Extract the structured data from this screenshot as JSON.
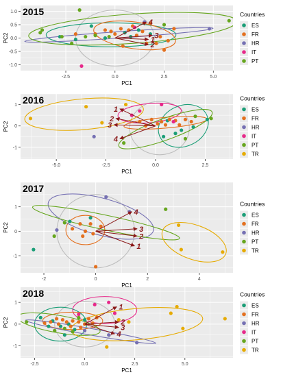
{
  "colors": {
    "ES": "#1b9e77",
    "FR": "#e3701f",
    "HR": "#7570b3",
    "IT": "#e7298a",
    "PT": "#66a61e",
    "TR": "#e6ab02",
    "arrow": "#8b1a1a",
    "grey": "#bdbdbd",
    "panel": "#ebebeb"
  },
  "chart_data": [
    {
      "type": "scatter",
      "title": "2015",
      "xlabel": "PC1",
      "ylabel": "PC2",
      "xlim": [
        -4.8,
        6.0
      ],
      "ylim": [
        -1.22,
        1.22
      ],
      "x_ticks": [
        -2.5,
        0.0,
        2.5,
        5.0
      ],
      "x_tick_labels": [
        "-2.5",
        "0.0",
        "2.5",
        "5.0"
      ],
      "y_ticks": [
        -1.0,
        -0.5,
        0.0,
        0.5,
        1.0
      ],
      "y_tick_labels": [
        "-1.0",
        "-0.5",
        "0.0",
        "0.5",
        "1.0"
      ],
      "legend_title": "Countries",
      "legend": [
        "ES",
        "FR",
        "HR",
        "IT",
        "PT"
      ],
      "points": {
        "ES": [
          [
            -2.8,
            0.05
          ],
          [
            -1.2,
            0.45
          ],
          [
            -0.5,
            0.0
          ],
          [
            0.5,
            0.2
          ],
          [
            1.2,
            0.3
          ],
          [
            1.8,
            0.15
          ],
          [
            -2.0,
            -0.05
          ],
          [
            0.8,
            0.05
          ]
        ],
        "FR": [
          [
            -1.0,
            0.15
          ],
          [
            -0.2,
            0.25
          ],
          [
            0.3,
            0.35
          ],
          [
            0.7,
            0.3
          ],
          [
            0.9,
            0.45
          ],
          [
            1.1,
            0.1
          ],
          [
            1.4,
            0.25
          ],
          [
            1.6,
            -0.2
          ],
          [
            2.1,
            -0.2
          ],
          [
            2.5,
            -0.45
          ],
          [
            3.0,
            0.35
          ],
          [
            0.4,
            -0.3
          ],
          [
            -0.5,
            0.3
          ],
          [
            1.8,
            0.55
          ],
          [
            2.3,
            0.05
          ],
          [
            2.7,
            -0.1
          ],
          [
            0.0,
            0.15
          ],
          [
            -2.0,
            0.15
          ]
        ],
        "HR": [
          [
            1.5,
            0.6
          ],
          [
            4.8,
            0.35
          ]
        ],
        "IT": [
          [
            -1.7,
            -1.05
          ],
          [
            1.0,
            0.4
          ]
        ],
        "PT": [
          [
            -3.8,
            0.2
          ],
          [
            -3.7,
            0.3
          ],
          [
            -2.7,
            0.05
          ],
          [
            -2.2,
            -0.2
          ],
          [
            -1.8,
            1.05
          ],
          [
            -1.5,
            0.05
          ],
          [
            -1.0,
            0.1
          ],
          [
            2.5,
            0.5
          ],
          [
            5.8,
            0.65
          ],
          [
            -0.3,
            0.05
          ]
        ]
      },
      "ellipses": [
        {
          "group": "grey",
          "cx": 0.0,
          "cy": 0.0,
          "rx": 2.0,
          "ry": 1.05,
          "angle": 0
        },
        {
          "group": "ES",
          "cx": -0.2,
          "cy": 0.12,
          "rx": 3.3,
          "ry": 0.45,
          "angle": 0
        },
        {
          "group": "FR",
          "cx": 1.0,
          "cy": 0.1,
          "rx": 2.1,
          "ry": 0.5,
          "angle": -8
        },
        {
          "group": "HR",
          "cx": 0.2,
          "cy": 0.12,
          "rx": 4.8,
          "ry": 0.12,
          "angle": 4
        },
        {
          "group": "PT",
          "cx": 0.9,
          "cy": 0.35,
          "rx": 5.3,
          "ry": 0.55,
          "angle": 4
        }
      ],
      "arrows": [
        {
          "label": "1",
          "x": 1.7,
          "y": -0.05
        },
        {
          "label": "2",
          "x": 1.7,
          "y": -0.25
        },
        {
          "label": "3",
          "x": 1.9,
          "y": 0.1
        },
        {
          "label": "4",
          "x": 1.6,
          "y": 0.6
        }
      ]
    },
    {
      "type": "scatter",
      "title": "2016",
      "xlabel": "PC1",
      "ylabel": "PC2",
      "xlim": [
        -6.8,
        3.9
      ],
      "ylim": [
        -1.55,
        1.5
      ],
      "x_ticks": [
        -5.0,
        -2.5,
        0.0,
        2.5
      ],
      "x_tick_labels": [
        "-5.0",
        "-2.5",
        "0.0",
        "2.5"
      ],
      "y_ticks": [
        -1,
        0,
        1
      ],
      "y_tick_labels": [
        "-1",
        "0",
        "1"
      ],
      "legend_title": "Countries",
      "legend": [
        "ES",
        "FR",
        "HR",
        "IT",
        "PT",
        "TR"
      ],
      "points": {
        "ES": [
          [
            0.6,
            0.25
          ],
          [
            1.3,
            -0.2
          ],
          [
            1.9,
            -0.05
          ],
          [
            2.6,
            0.3
          ],
          [
            0.4,
            -0.5
          ],
          [
            1.0,
            -0.35
          ]
        ],
        "FR": [
          [
            -0.5,
            0.0
          ],
          [
            -0.2,
            0.3
          ],
          [
            0.1,
            0.1
          ],
          [
            0.5,
            0.05
          ],
          [
            0.7,
            0.3
          ],
          [
            1.0,
            0.25
          ],
          [
            1.2,
            0.05
          ],
          [
            1.5,
            0.3
          ],
          [
            0.3,
            0.2
          ],
          [
            -0.8,
            0.2
          ],
          [
            1.8,
            0.2
          ]
        ],
        "HR": [
          [
            -3.1,
            -0.5
          ]
        ],
        "IT": [
          [
            -0.8,
            0.7
          ],
          [
            0.3,
            1.0
          ],
          [
            -1.2,
            0.5
          ],
          [
            0.9,
            0.2
          ]
        ],
        "PT": [
          [
            -1.6,
            -0.8
          ],
          [
            2.0,
            0.45
          ],
          [
            2.8,
            0.35
          ],
          [
            1.5,
            -0.6
          ]
        ],
        "TR": [
          [
            -6.3,
            0.35
          ],
          [
            -3.5,
            0.9
          ],
          [
            -2.7,
            0.15
          ],
          [
            -1.5,
            1.0
          ]
        ]
      },
      "ellipses": [
        {
          "group": "grey",
          "cx": 0.2,
          "cy": -0.1,
          "rx": 1.5,
          "ry": 1.25,
          "angle": 0
        },
        {
          "group": "TR",
          "cx": -3.6,
          "cy": 0.55,
          "rx": 3.0,
          "ry": 0.72,
          "angle": 5
        },
        {
          "group": "IT",
          "cx": -0.3,
          "cy": 0.6,
          "rx": 1.6,
          "ry": 0.45,
          "angle": 5
        },
        {
          "group": "ES",
          "cx": 1.4,
          "cy": 0.0,
          "rx": 1.3,
          "ry": 0.95,
          "angle": 25
        },
        {
          "group": "FR",
          "cx": 0.5,
          "cy": 0.15,
          "rx": 2.1,
          "ry": 0.25,
          "angle": 5
        },
        {
          "group": "PT",
          "cx": 0.5,
          "cy": -0.15,
          "rx": 2.5,
          "ry": 0.5,
          "angle": 20
        }
      ],
      "arrows": [
        {
          "label": "1",
          "x": -1.8,
          "y": 0.8
        },
        {
          "label": "2",
          "x": -2.0,
          "y": 0.35
        },
        {
          "label": "3",
          "x": -2.1,
          "y": 0.05
        },
        {
          "label": "4",
          "x": -1.8,
          "y": -0.6
        }
      ]
    },
    {
      "type": "scatter",
      "title": "2017",
      "xlabel": "PC1",
      "ylabel": "PC2",
      "xlim": [
        -2.9,
        5.3
      ],
      "ylim": [
        -1.7,
        2.0
      ],
      "x_ticks": [
        -2,
        0,
        2,
        4
      ],
      "x_tick_labels": [
        "-2",
        "0",
        "2",
        "4"
      ],
      "y_ticks": [
        -1,
        0,
        1
      ],
      "y_tick_labels": [
        "-1",
        "0",
        "1"
      ],
      "legend_title": "Countries",
      "legend": [
        "ES",
        "FR",
        "HR",
        "PT",
        "TR"
      ],
      "points": {
        "ES": [
          [
            -2.4,
            -0.75
          ],
          [
            -0.2,
            0.55
          ],
          [
            -1.0,
            0.4
          ]
        ],
        "FR": [
          [
            -0.9,
            0.1
          ],
          [
            -0.6,
            0.3
          ],
          [
            -0.4,
            0.0
          ],
          [
            -0.2,
            0.3
          ],
          [
            -0.1,
            -0.1
          ],
          [
            0.2,
            0.2
          ],
          [
            -0.5,
            -0.2
          ],
          [
            0.0,
            -1.45
          ]
        ],
        "HR": [
          [
            -1.5,
            0.05
          ],
          [
            0.4,
            1.4
          ],
          [
            1.3,
            0.8
          ]
        ],
        "PT": [
          [
            -1.6,
            -0.2
          ],
          [
            -1.2,
            0.35
          ],
          [
            2.7,
            0.9
          ]
        ],
        "TR": [
          [
            3.2,
            0.25
          ],
          [
            3.3,
            -0.75
          ],
          [
            4.9,
            -0.85
          ]
        ]
      },
      "ellipses": [
        {
          "group": "grey",
          "cx": 0.0,
          "cy": 0.0,
          "rx": 1.5,
          "ry": 1.5,
          "angle": 0
        },
        {
          "group": "FR",
          "cx": -0.4,
          "cy": 0.05,
          "rx": 0.75,
          "ry": 0.6,
          "angle": 0
        },
        {
          "group": "HR",
          "cx": 0.2,
          "cy": 0.6,
          "rx": 2.1,
          "ry": 0.75,
          "angle": -15
        },
        {
          "group": "PT",
          "cx": 0.4,
          "cy": 0.35,
          "rx": 2.9,
          "ry": 0.3,
          "angle": -12
        },
        {
          "group": "TR",
          "cx": 3.8,
          "cy": -0.45,
          "rx": 1.3,
          "ry": 0.7,
          "angle": -20
        }
      ],
      "arrows": [
        {
          "label": "1",
          "x": 1.5,
          "y": -0.6
        },
        {
          "label": "2",
          "x": 1.6,
          "y": -0.2
        },
        {
          "label": "3",
          "x": 1.6,
          "y": 0.1
        },
        {
          "label": "4",
          "x": 1.4,
          "y": 0.8
        }
      ]
    },
    {
      "type": "scatter",
      "title": "2018",
      "xlabel": "PC1",
      "ylabel": "PC2",
      "xlim": [
        -3.2,
        7.4
      ],
      "ylim": [
        -1.55,
        1.7
      ],
      "x_ticks": [
        -2.5,
        0.0,
        2.5,
        5.0
      ],
      "x_tick_labels": [
        "-2.5",
        "0.0",
        "2.5",
        "5.0"
      ],
      "y_ticks": [
        -1,
        0,
        1
      ],
      "y_tick_labels": [
        "-1",
        "0",
        "1"
      ],
      "legend_title": "Countries",
      "legend": [
        "ES",
        "FR",
        "HR",
        "IT",
        "PT",
        "TR"
      ],
      "points": {
        "ES": [
          [
            -2.2,
            0.3
          ],
          [
            -1.6,
            0.15
          ],
          [
            -1.2,
            -0.1
          ],
          [
            -0.8,
            0.0
          ],
          [
            -0.5,
            -0.25
          ],
          [
            0.0,
            0.2
          ],
          [
            -1.0,
            -0.5
          ],
          [
            -1.8,
            -0.1
          ]
        ],
        "FR": [
          [
            -2.0,
            0.05
          ],
          [
            -1.7,
            0.1
          ],
          [
            -1.4,
            0.25
          ],
          [
            -1.1,
            0.2
          ],
          [
            -0.9,
            0.1
          ],
          [
            -0.6,
            0.15
          ],
          [
            -0.3,
            0.1
          ],
          [
            0.2,
            0.25
          ],
          [
            0.4,
            0.05
          ],
          [
            -0.7,
            -0.1
          ],
          [
            -1.3,
            0.0
          ],
          [
            0.0,
            0.0
          ],
          [
            0.6,
            0.3
          ],
          [
            -0.2,
            -0.15
          ]
        ],
        "HR": [
          [
            0.0,
            -0.3
          ],
          [
            1.2,
            -0.5
          ],
          [
            2.6,
            -0.85
          ]
        ],
        "IT": [
          [
            0.5,
            0.9
          ],
          [
            1.2,
            1.0
          ],
          [
            -0.3,
            0.45
          ],
          [
            1.5,
            0.5
          ]
        ],
        "PT": [
          [
            -2.9,
            0.1
          ],
          [
            -1.5,
            -0.3
          ],
          [
            -1.0,
            -0.2
          ],
          [
            -0.6,
            -0.35
          ],
          [
            -0.3,
            0.3
          ]
        ],
        "TR": [
          [
            1.7,
            0.2
          ],
          [
            1.1,
            -1.05
          ],
          [
            4.3,
            0.5
          ],
          [
            4.6,
            0.8
          ],
          [
            4.9,
            -0.2
          ],
          [
            7.0,
            0.25
          ],
          [
            2.2,
            0.1
          ]
        ]
      },
      "ellipses": [
        {
          "group": "grey",
          "cx": 0.0,
          "cy": 0.0,
          "rx": 1.5,
          "ry": 1.05,
          "angle": 0
        },
        {
          "group": "ES",
          "cx": -1.2,
          "cy": 0.0,
          "rx": 1.3,
          "ry": 0.78,
          "angle": 0
        },
        {
          "group": "IT",
          "cx": 1.0,
          "cy": 0.65,
          "rx": 1.6,
          "ry": 0.62,
          "angle": 0
        },
        {
          "group": "FR",
          "cx": -0.6,
          "cy": 0.15,
          "rx": 1.5,
          "ry": 0.4,
          "angle": 0
        },
        {
          "group": "HR",
          "cx": 0.3,
          "cy": -0.35,
          "rx": 3.3,
          "ry": 0.15,
          "angle": -10
        },
        {
          "group": "PT",
          "cx": -1.3,
          "cy": 0.0,
          "rx": 2.1,
          "ry": 0.4,
          "angle": -10
        },
        {
          "group": "TR",
          "cx": 2.6,
          "cy": 0.0,
          "rx": 3.3,
          "ry": 0.72,
          "angle": 5
        }
      ],
      "arrows": [
        {
          "label": "1",
          "x": 1.6,
          "y": 0.8
        },
        {
          "label": "2",
          "x": 1.7,
          "y": 0.1
        },
        {
          "label": "3",
          "x": 1.7,
          "y": -0.15
        },
        {
          "label": "4",
          "x": 1.5,
          "y": -0.45
        }
      ]
    }
  ]
}
